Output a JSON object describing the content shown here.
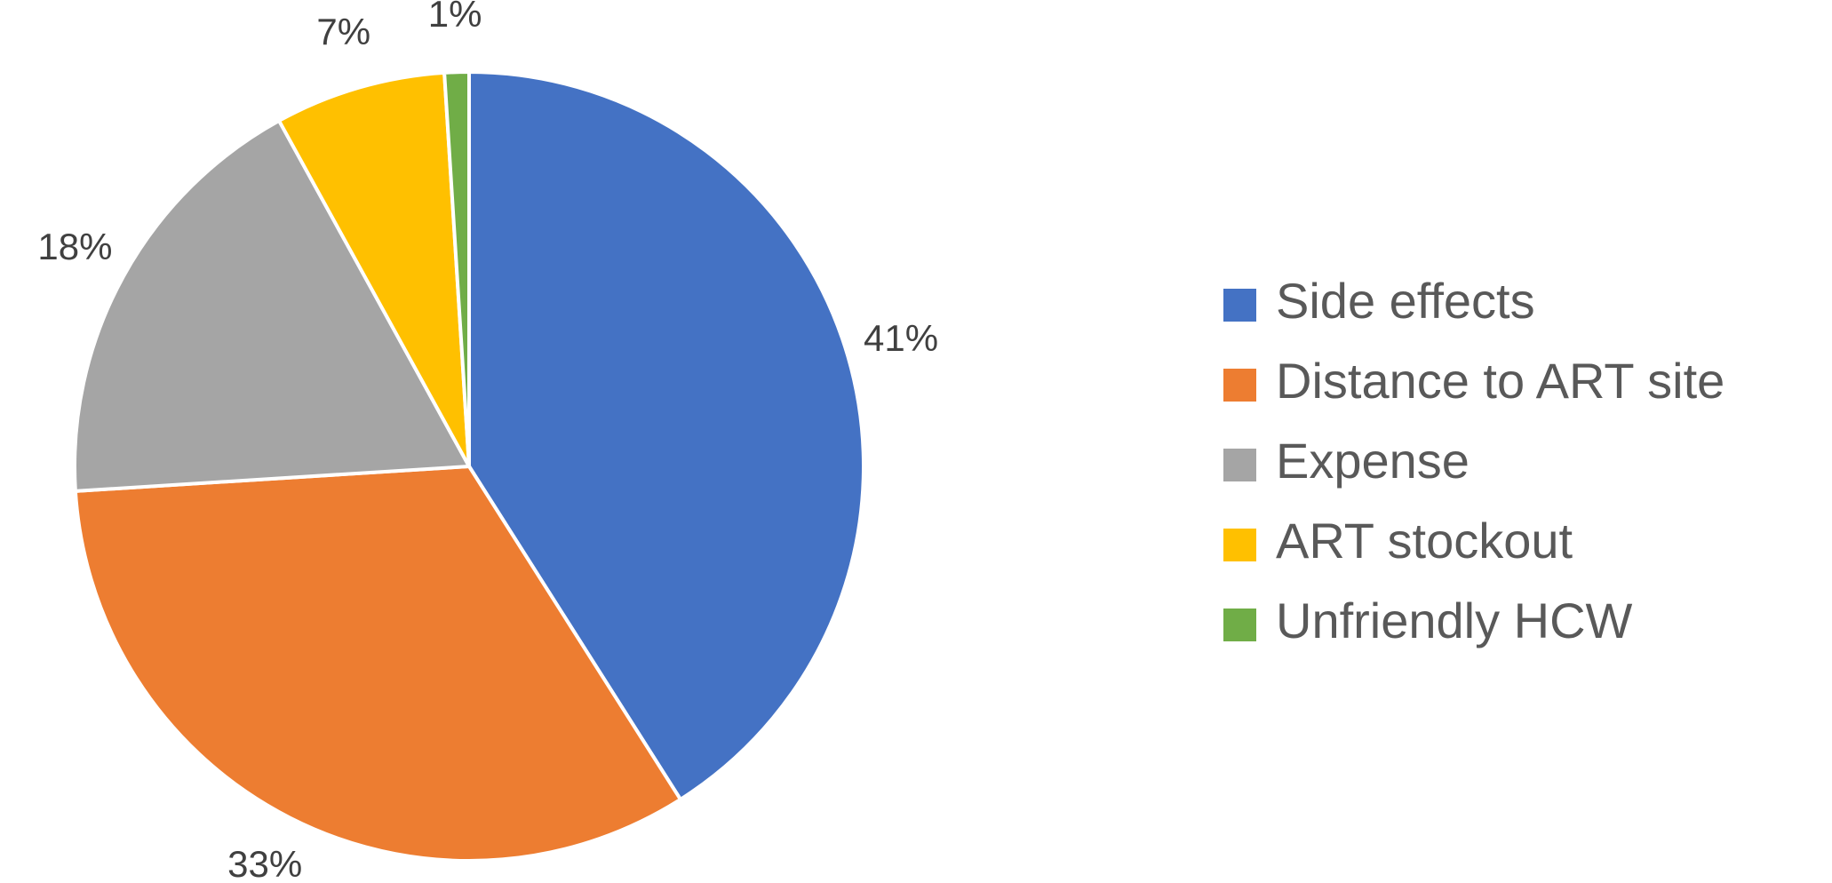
{
  "chart_data": {
    "type": "pie",
    "categories": [
      "Side effects",
      "Distance to ART site",
      "Expense",
      "ART stockout",
      "Unfriendly HCW"
    ],
    "values": [
      41,
      33,
      18,
      7,
      1
    ],
    "value_labels": [
      "41%",
      "33%",
      "18%",
      "7%",
      "1%"
    ],
    "colors": [
      "#4472c4",
      "#ed7d31",
      "#a5a5a5",
      "#ffc000",
      "#70ad47"
    ],
    "legend": "right"
  }
}
